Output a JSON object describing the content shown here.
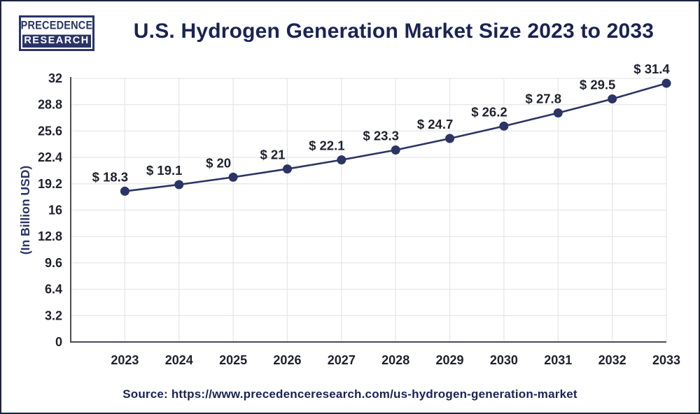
{
  "logo": {
    "line1": "PRECEDENCE",
    "line2": "RESEARCH"
  },
  "header": {
    "title": "U.S. Hydrogen Generation Market Size 2023 to 2033"
  },
  "source": {
    "text": "Source: https://www.precedenceresearch.com/us-hydrogen-generation-market"
  },
  "colors": {
    "accent_navy": "#2b3467",
    "title_navy": "#1a2353",
    "line_color": "#2b3465",
    "marker_color": "#2b3465",
    "tick_text": "#1e212d",
    "gridline": "#e7e7e7",
    "axis_line": "#4a4c55",
    "background": "#ffffff"
  },
  "chart_data": {
    "type": "line",
    "title": "U.S. Hydrogen Generation Market Size 2023 to 2033",
    "categories": [
      "2023",
      "2024",
      "2025",
      "2026",
      "2027",
      "2028",
      "2029",
      "2030",
      "2031",
      "2032",
      "2033"
    ],
    "values": [
      18.3,
      19.1,
      20,
      21,
      22.1,
      23.3,
      24.7,
      26.2,
      27.8,
      29.5,
      31.4
    ],
    "point_labels": [
      "$ 18.3",
      "$ 19.1",
      "$ 20",
      "$ 21",
      "$ 22.1",
      "$ 23.3",
      "$ 24.7",
      "$ 26.2",
      "$ 27.8",
      "$ 29.5",
      "$ 31.4"
    ],
    "xlabel": "",
    "ylabel": "(In Billion USD)",
    "yticks": [
      "0",
      "3.2",
      "6.4",
      "9.6",
      "12.8",
      "16",
      "19.2",
      "22.4",
      "25.6",
      "28.8",
      "32"
    ],
    "ylim": [
      0,
      32
    ],
    "grid": "both",
    "legend": "none",
    "marker": "circle"
  }
}
